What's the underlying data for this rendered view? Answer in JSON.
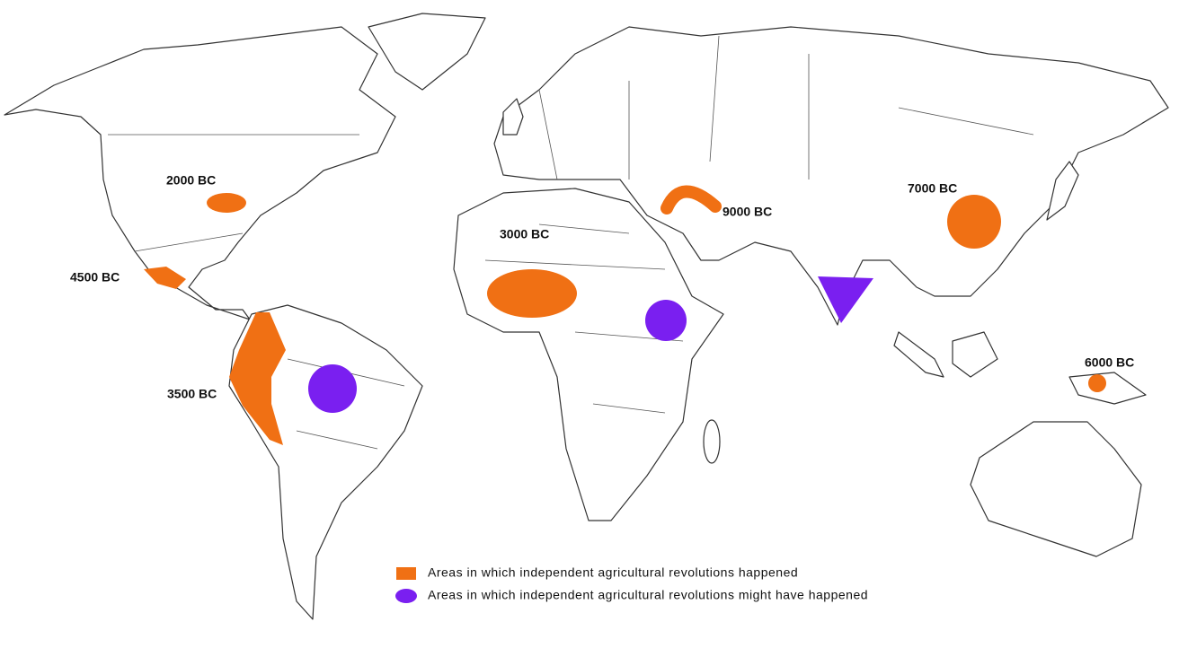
{
  "labels": [
    "2000 BC",
    "4500 BC",
    "3500 BC",
    "3000 BC",
    "9000 BC",
    "7000 BC",
    "6000 BC"
  ],
  "legend": [
    "Areas in which independent agricultural revolutions happened",
    "Areas in which independent agricultural revolutions might have happened"
  ]
}
